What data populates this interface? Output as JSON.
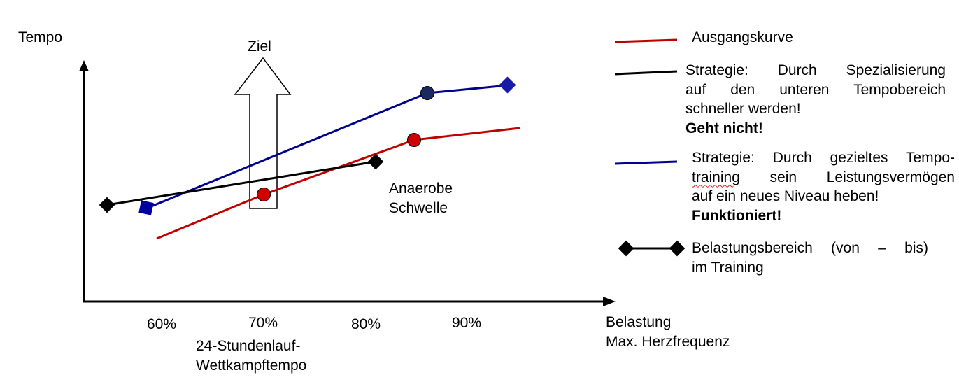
{
  "axes": {
    "y_label": "Tempo",
    "x_label_line1": "Belastung",
    "x_label_line2": "Max. Herzfrequenz",
    "x_ticks": [
      "60%",
      "70%",
      "80%",
      "90%"
    ]
  },
  "annotations": {
    "goal_label": "Ziel",
    "threshold_line1": "Anaerobe",
    "threshold_line2": "Schwelle",
    "race_pace_line1": "24-Stundenlauf-",
    "race_pace_line2": "Wettkampftempo"
  },
  "legend": {
    "baseline": "Ausgangskurve",
    "strategy_black": {
      "line1": "Strategie: Durch Spezialisierung",
      "line2": "auf den unteren Tempobereich",
      "line3": "schneller werden!",
      "verdict": "Geht nicht!"
    },
    "strategy_blue": {
      "line1": "Strategie: Durch gezieltes Tempo-",
      "line2a": "training",
      "line2b": " sein Leistungsvermögen",
      "line3": "auf ein neues Niveau heben!",
      "verdict": "Funktioniert!"
    },
    "range": {
      "line1": "Belastungsbereich (von – bis)",
      "line2": "im Training"
    }
  },
  "colors": {
    "baseline": "#c00000",
    "strategy_black": "#000000",
    "strategy_blue": "#000090",
    "blue_marker": "#0000a0",
    "dark_marker": "#1a2a60"
  }
}
